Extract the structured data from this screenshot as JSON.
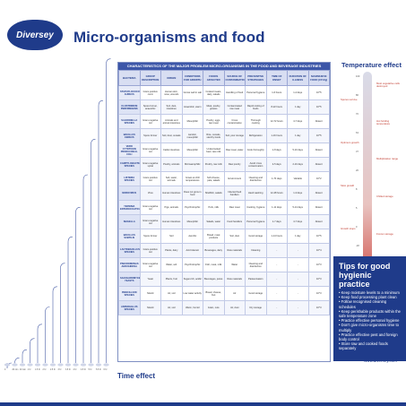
{
  "brand": {
    "name": "Diversey"
  },
  "page": {
    "title": "Micro-organisms and food",
    "url": "www.diversey.com"
  },
  "table": {
    "header": "CHARACTERISTICS OF THE MAJOR PROBLEM MICRO-ORGANISMS IN THE FOOD AND BEVERAGE INDUSTRIES",
    "columns": [
      "BACTERIA",
      "GROUP DESCRIPTION",
      "ORIGIN",
      "CONDITIONS FOR GROWTH",
      "FOODS AFFECTED",
      "SOURCE OF CONTAMINATION",
      "PREVENTIVE STRATEGIES",
      "TIME OF ONSET",
      "DURATION OF ILLNESS",
      "MAXIMUM IN FOOD (CFU/g)"
    ],
    "rows": [
      [
        "STAPHYLOCOCCUS AUREUS",
        "Gram-positive cocci",
        "Human skin, nose, wounds",
        "Grows well in salt",
        "Cooked meats, dairy, salads",
        "Handling of food",
        "Personal hygiene",
        "1-6 hours",
        "1-2 days",
        "10^5"
      ],
      [
        "CLOSTRIDIUM PERFRINGENS",
        "Spore former, anaerobic",
        "Soil, dust, intestines",
        "Anaerobic, warm",
        "Meat, poultry, gravies",
        "Contaminated raw meat",
        "Rapid cooling of foods",
        "8-22 hours",
        "1 day",
        "10^5"
      ],
      [
        "SALMONELLA SPECIES",
        "Gram-negative rod",
        "Animals and animal intestines",
        "Mesophilic",
        "Poultry, eggs, raw meat",
        "Cross contamination",
        "Thorough cooking",
        "12-72 hours",
        "4-7 days",
        "Absent"
      ],
      [
        "BACILLUS CEREUS",
        "Spore former",
        "Soil, dust, cereals",
        "Aerobic, mesophilic",
        "Rice, cereals, starchy foods",
        "Soil, poor storage",
        "Refrigeration",
        "1-16 hours",
        "1 day",
        "10^5"
      ],
      [
        "VERO CYTOTOXIN PRODUCING E. COLI",
        "Gram-negative rod",
        "Cattle intestines",
        "Mesophilic",
        "Undercooked beef, raw milk",
        "Raw meat, water",
        "Cook thoroughly",
        "1-8 days",
        "5-10 days",
        "Absent"
      ],
      [
        "CAMPYLOBACTER SPECIES",
        "Gram-negative spiral",
        "Poultry, animals",
        "Microaerophilic",
        "Poultry, raw milk",
        "Raw poultry",
        "Avoid cross contamination",
        "2-5 days",
        "2-10 days",
        "Absent"
      ],
      [
        "LISTERIA SPECIES",
        "Gram-positive rod",
        "Soil, water, animals",
        "Grows at chill temperatures",
        "Soft cheese, pate, salads",
        "Environment",
        "Cleaning and disinfection",
        "1-70 days",
        "Variable",
        "10^2"
      ],
      [
        "NOROVIRUS",
        "Virus",
        "Human intestines",
        "Does not grow in food",
        "Shellfish, salads",
        "Infected food handlers",
        "Hand washing",
        "12-48 hours",
        "1-3 days",
        "Absent"
      ],
      [
        "YERSINIA ENTEROCOLITICA",
        "Gram-negative rod",
        "Pigs, animals",
        "Psychrotrophic",
        "Pork, milk",
        "Raw meat",
        "Cooking, hygiene",
        "1-11 days",
        "5-14 days",
        "Absent"
      ],
      [
        "SHIGELLA",
        "Gram-negative rod",
        "Human intestines",
        "Mesophilic",
        "Salads, water",
        "Food handlers",
        "Personal hygiene",
        "1-7 days",
        "4-7 days",
        "Absent"
      ],
      [
        "BACILLUS SUBTILIS",
        "Spore former",
        "Soil",
        "Aerobic",
        "Bread, meat products",
        "Soil, dust",
        "Good storage",
        "1-14 hours",
        "1 day",
        "10^5"
      ],
      [
        "LACTOBACILLUS SPECIES",
        "Gram-positive rod",
        "Plants, dairy",
        "Acid tolerant",
        "Beverages, dairy",
        "Raw materials",
        "Cleaning",
        "-",
        "-",
        "10^4"
      ],
      [
        "PSEUDOMONAS AERUGINOSA",
        "Gram-negative rod",
        "Water, soil",
        "Psychrotrophic",
        "Fish, meat, milk",
        "Water",
        "Cleaning and disinfection",
        "-",
        "-",
        "10^3"
      ],
      [
        "SACCHAROMYCES YEASTS",
        "Yeast",
        "Plants, fruit",
        "Sugar-rich, acidic",
        "Beverages, juices",
        "Raw materials",
        "Pasteurisation",
        "-",
        "-",
        "10^3"
      ],
      [
        "PENICILLIUM SPECIES",
        "Mould",
        "Air, soil",
        "Low water activity",
        "Bread, cheese, fruit",
        "Air",
        "Good storage",
        "-",
        "-",
        "10^3"
      ],
      [
        "ASPERGILLUS SPECIES",
        "Mould",
        "Air, soil",
        "Warm, humid",
        "Grain, nuts",
        "Air, dust",
        "Dry storage",
        "-",
        "-",
        "10^3"
      ]
    ]
  },
  "temperature": {
    "title": "Temperature effect",
    "ticks": [
      "100",
      "80",
      "70",
      "63",
      "37",
      "20",
      "8",
      "5",
      "0",
      "-18"
    ],
    "notes_right": [
      "Most vegetative cells destroyed",
      "Hot holding temperature",
      "Multiplication range",
      "Chilled storage",
      "Frozen storage"
    ],
    "notes_left": [
      "Spores survive",
      "Optimum growth",
      "Slow growth",
      "Growth stops"
    ]
  },
  "tips": {
    "title": "Tips for good hygienic practice",
    "items": [
      "Keep moisture levels to a minimum",
      "Keep food processing plant clean",
      "Follow recognised cleaning schedules",
      "Keep perishable products within the safe temperature zone",
      "Practice effective personal hygiene",
      "Don't give micro-organisms time to multiply",
      "Practice effective pest and foreign body control",
      "Store raw and cooked foods separately"
    ]
  },
  "time_effect": {
    "label": "Time effect",
    "ticks": [
      "0",
      "20 min",
      "40 min",
      "1 hr",
      "1.5 hr",
      "2 hr",
      "2.5 hr",
      "3 hr",
      "3.5 hr",
      "4 hr",
      "4.5 hr",
      "5 hr",
      "5.5 hr",
      "6 hr"
    ]
  }
}
